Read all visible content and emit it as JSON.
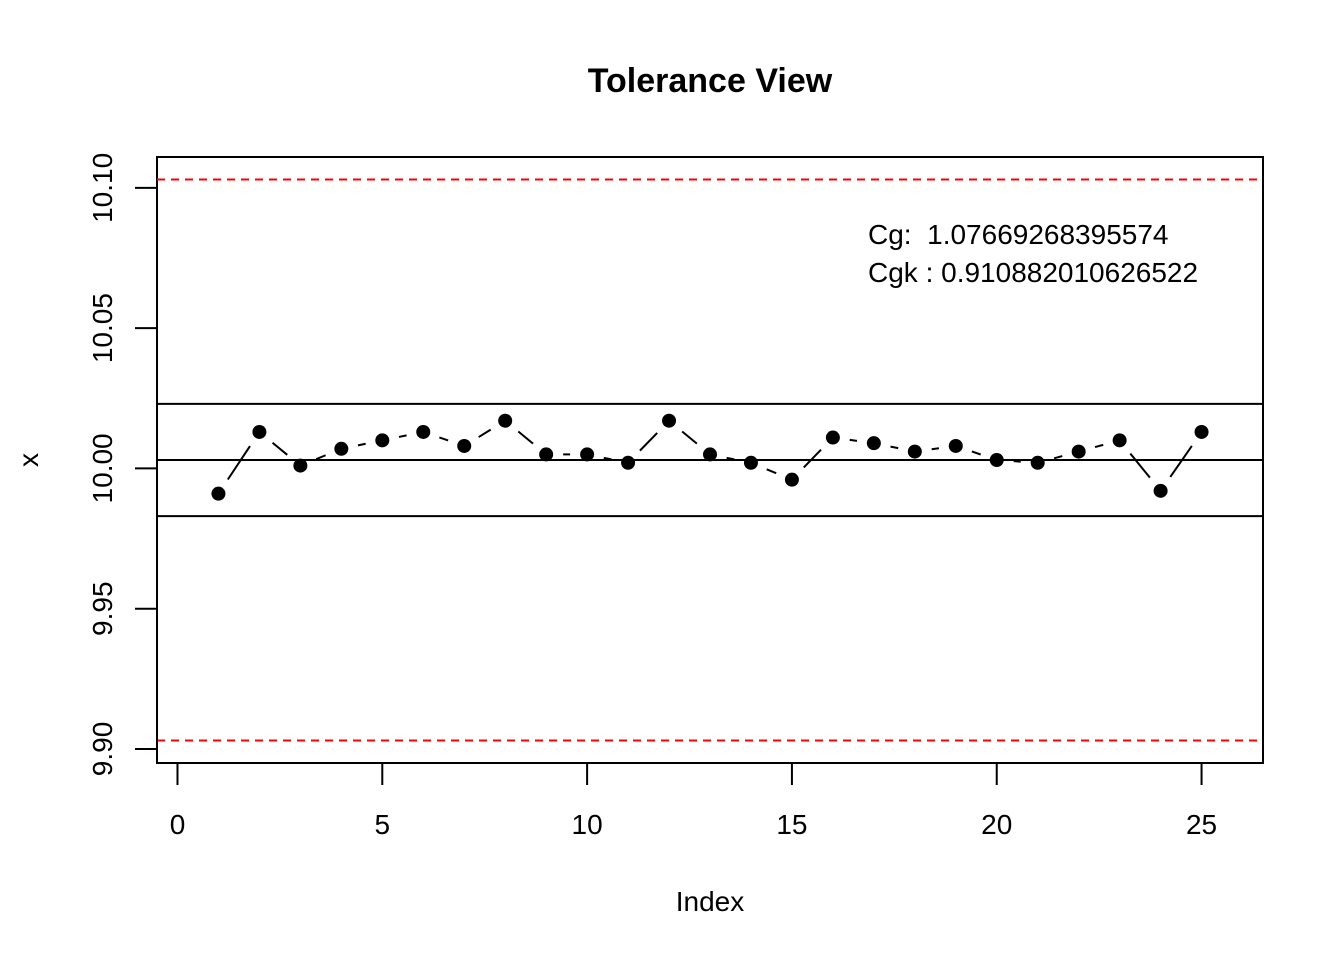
{
  "chart_data": {
    "type": "line",
    "title": "Tolerance View",
    "xlabel": "Index",
    "ylabel": "x",
    "xlim": [
      -0.5,
      26.5
    ],
    "ylim": [
      9.895,
      10.111
    ],
    "x_ticks": [
      0,
      5,
      10,
      15,
      20,
      25
    ],
    "x_tick_labels": [
      "0",
      "5",
      "10",
      "15",
      "20",
      "25"
    ],
    "y_ticks": [
      9.9,
      9.95,
      10.0,
      10.05,
      10.1
    ],
    "y_tick_labels": [
      "9.90",
      "9.95",
      "10.00",
      "10.05",
      "10.10"
    ],
    "x": [
      1,
      2,
      3,
      4,
      5,
      6,
      7,
      8,
      9,
      10,
      11,
      12,
      13,
      14,
      15,
      16,
      17,
      18,
      19,
      20,
      21,
      22,
      23,
      24,
      25
    ],
    "values": [
      9.991,
      10.013,
      10.001,
      10.007,
      10.01,
      10.013,
      10.008,
      10.017,
      10.005,
      10.005,
      10.002,
      10.017,
      10.005,
      10.002,
      9.996,
      10.011,
      10.009,
      10.006,
      10.008,
      10.003,
      10.002,
      10.006,
      10.01,
      9.992,
      10.013
    ],
    "reference_lines": {
      "upper_tolerance": 10.103,
      "lower_tolerance": 9.903,
      "center": 10.003,
      "upper_band": 10.023,
      "lower_band": 9.983
    },
    "annotations": [
      "Cg:  1.07669268395574",
      "Cgk : 0.910882010626522"
    ],
    "colors": {
      "points": "#000000",
      "tolerance_lines": "#ff0000",
      "reference_lines": "#000000"
    },
    "grid": false,
    "legend": "none"
  }
}
